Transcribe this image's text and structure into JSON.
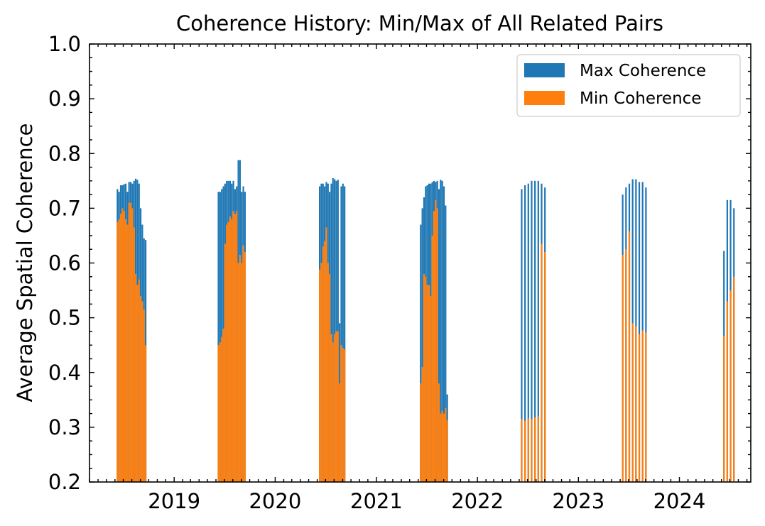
{
  "chart_data": {
    "type": "bar",
    "title": "Coherence History: Min/Max of All Related Pairs",
    "xlabel": "",
    "ylabel": "Average Spatial Coherence",
    "ylim": [
      0.2,
      1.0
    ],
    "xlim": [
      "2018-03-01",
      "2024-09-15"
    ],
    "grid": false,
    "legend_position": "top-right",
    "x_ticks": [
      "2019",
      "2020",
      "2021",
      "2022",
      "2023",
      "2024"
    ],
    "y_ticks": [
      "0.2",
      "0.3",
      "0.4",
      "0.5",
      "0.6",
      "0.7",
      "0.8",
      "0.9",
      "1.0"
    ],
    "colors": {
      "max": "#1f77b4",
      "min": "#ff7f0e"
    },
    "series": [
      {
        "name": "Max Coherence",
        "color": "#1f77b4",
        "points": [
          [
            "2018-06-10",
            0.735
          ],
          [
            "2018-06-16",
            0.73
          ],
          [
            "2018-06-22",
            0.742
          ],
          [
            "2018-06-28",
            0.742
          ],
          [
            "2018-07-04",
            0.744
          ],
          [
            "2018-07-10",
            0.745
          ],
          [
            "2018-07-16",
            0.73
          ],
          [
            "2018-07-22",
            0.748
          ],
          [
            "2018-07-28",
            0.748
          ],
          [
            "2018-08-03",
            0.745
          ],
          [
            "2018-08-09",
            0.75
          ],
          [
            "2018-08-15",
            0.754
          ],
          [
            "2018-08-21",
            0.752
          ],
          [
            "2018-08-27",
            0.745
          ],
          [
            "2018-09-02",
            0.7
          ],
          [
            "2018-09-08",
            0.67
          ],
          [
            "2018-09-14",
            0.645
          ],
          [
            "2018-09-20",
            0.642
          ],
          [
            "2019-06-10",
            0.73
          ],
          [
            "2019-06-16",
            0.73
          ],
          [
            "2019-06-22",
            0.735
          ],
          [
            "2019-06-28",
            0.74
          ],
          [
            "2019-07-04",
            0.745
          ],
          [
            "2019-07-10",
            0.75
          ],
          [
            "2019-07-16",
            0.75
          ],
          [
            "2019-07-22",
            0.75
          ],
          [
            "2019-07-28",
            0.745
          ],
          [
            "2019-08-03",
            0.75
          ],
          [
            "2019-08-09",
            0.735
          ],
          [
            "2019-08-15",
            0.74
          ],
          [
            "2019-08-21",
            0.788
          ],
          [
            "2019-08-27",
            0.788
          ],
          [
            "2019-09-02",
            0.73
          ],
          [
            "2019-09-08",
            0.74
          ],
          [
            "2019-09-14",
            0.73
          ],
          [
            "2020-06-10",
            0.74
          ],
          [
            "2020-06-16",
            0.745
          ],
          [
            "2020-06-22",
            0.745
          ],
          [
            "2020-06-28",
            0.74
          ],
          [
            "2020-07-04",
            0.748
          ],
          [
            "2020-07-10",
            0.745
          ],
          [
            "2020-07-16",
            0.73
          ],
          [
            "2020-07-22",
            0.745
          ],
          [
            "2020-07-28",
            0.755
          ],
          [
            "2020-08-03",
            0.753
          ],
          [
            "2020-08-09",
            0.75
          ],
          [
            "2020-08-15",
            0.752
          ],
          [
            "2020-08-21",
            0.49
          ],
          [
            "2020-08-27",
            0.74
          ],
          [
            "2020-09-02",
            0.745
          ],
          [
            "2020-09-08",
            0.74
          ],
          [
            "2021-06-10",
            0.67
          ],
          [
            "2021-06-16",
            0.7
          ],
          [
            "2021-06-22",
            0.72
          ],
          [
            "2021-06-28",
            0.74
          ],
          [
            "2021-07-04",
            0.742
          ],
          [
            "2021-07-10",
            0.745
          ],
          [
            "2021-07-16",
            0.745
          ],
          [
            "2021-07-22",
            0.748
          ],
          [
            "2021-07-28",
            0.75
          ],
          [
            "2021-08-03",
            0.748
          ],
          [
            "2021-08-09",
            0.75
          ],
          [
            "2021-08-15",
            0.735
          ],
          [
            "2021-08-21",
            0.752
          ],
          [
            "2021-08-27",
            0.75
          ],
          [
            "2021-09-02",
            0.74
          ],
          [
            "2021-09-08",
            0.705
          ],
          [
            "2021-09-14",
            0.36
          ],
          [
            "2022-06-10",
            0.735
          ],
          [
            "2022-06-22",
            0.742
          ],
          [
            "2022-07-04",
            0.745
          ],
          [
            "2022-07-16",
            0.75
          ],
          [
            "2022-07-28",
            0.75
          ],
          [
            "2022-08-09",
            0.75
          ],
          [
            "2022-08-21",
            0.745
          ],
          [
            "2022-09-02",
            0.738
          ],
          [
            "2023-06-10",
            0.725
          ],
          [
            "2023-06-22",
            0.738
          ],
          [
            "2023-07-04",
            0.745
          ],
          [
            "2023-07-16",
            0.753
          ],
          [
            "2023-07-28",
            0.753
          ],
          [
            "2023-08-09",
            0.748
          ],
          [
            "2023-08-21",
            0.748
          ],
          [
            "2023-09-02",
            0.738
          ],
          [
            "2024-06-10",
            0.622
          ],
          [
            "2024-06-22",
            0.715
          ],
          [
            "2024-07-04",
            0.715
          ],
          [
            "2024-07-16",
            0.7
          ]
        ]
      },
      {
        "name": "Min Coherence",
        "color": "#ff7f0e",
        "points": [
          [
            "2018-06-10",
            0.675
          ],
          [
            "2018-06-16",
            0.68
          ],
          [
            "2018-06-22",
            0.69
          ],
          [
            "2018-06-28",
            0.7
          ],
          [
            "2018-07-04",
            0.695
          ],
          [
            "2018-07-10",
            0.68
          ],
          [
            "2018-07-16",
            0.67
          ],
          [
            "2018-07-22",
            0.71
          ],
          [
            "2018-07-28",
            0.71
          ],
          [
            "2018-08-03",
            0.7
          ],
          [
            "2018-08-09",
            0.665
          ],
          [
            "2018-08-15",
            0.58
          ],
          [
            "2018-08-21",
            0.56
          ],
          [
            "2018-08-27",
            0.57
          ],
          [
            "2018-09-02",
            0.54
          ],
          [
            "2018-09-08",
            0.53
          ],
          [
            "2018-09-14",
            0.515
          ],
          [
            "2018-09-20",
            0.45
          ],
          [
            "2019-06-10",
            0.45
          ],
          [
            "2019-06-16",
            0.455
          ],
          [
            "2019-06-22",
            0.465
          ],
          [
            "2019-06-28",
            0.48
          ],
          [
            "2019-07-04",
            0.635
          ],
          [
            "2019-07-10",
            0.67
          ],
          [
            "2019-07-16",
            0.675
          ],
          [
            "2019-07-22",
            0.685
          ],
          [
            "2019-07-28",
            0.68
          ],
          [
            "2019-08-03",
            0.695
          ],
          [
            "2019-08-09",
            0.69
          ],
          [
            "2019-08-15",
            0.695
          ],
          [
            "2019-08-21",
            0.6
          ],
          [
            "2019-08-27",
            0.615
          ],
          [
            "2019-09-02",
            0.6
          ],
          [
            "2019-09-08",
            0.632
          ],
          [
            "2019-09-14",
            0.62
          ],
          [
            "2020-06-10",
            0.588
          ],
          [
            "2020-06-16",
            0.6
          ],
          [
            "2020-06-22",
            0.63
          ],
          [
            "2020-06-28",
            0.64
          ],
          [
            "2020-07-04",
            0.665
          ],
          [
            "2020-07-10",
            0.6
          ],
          [
            "2020-07-16",
            0.58
          ],
          [
            "2020-07-22",
            0.47
          ],
          [
            "2020-07-28",
            0.455
          ],
          [
            "2020-08-03",
            0.47
          ],
          [
            "2020-08-09",
            0.476
          ],
          [
            "2020-08-15",
            0.475
          ],
          [
            "2020-08-21",
            0.38
          ],
          [
            "2020-08-27",
            0.45
          ],
          [
            "2020-09-02",
            0.445
          ],
          [
            "2020-09-08",
            0.442
          ],
          [
            "2021-06-10",
            0.38
          ],
          [
            "2021-06-16",
            0.41
          ],
          [
            "2021-06-22",
            0.58
          ],
          [
            "2021-06-28",
            0.575
          ],
          [
            "2021-07-04",
            0.56
          ],
          [
            "2021-07-10",
            0.56
          ],
          [
            "2021-07-16",
            0.54
          ],
          [
            "2021-07-22",
            0.65
          ],
          [
            "2021-07-28",
            0.695
          ],
          [
            "2021-08-03",
            0.715
          ],
          [
            "2021-08-09",
            0.7
          ],
          [
            "2021-08-15",
            0.38
          ],
          [
            "2021-08-21",
            0.325
          ],
          [
            "2021-08-27",
            0.33
          ],
          [
            "2021-09-02",
            0.325
          ],
          [
            "2021-09-08",
            0.335
          ],
          [
            "2021-09-14",
            0.313
          ],
          [
            "2022-06-10",
            0.315
          ],
          [
            "2022-06-22",
            0.312
          ],
          [
            "2022-07-04",
            0.316
          ],
          [
            "2022-07-16",
            0.315
          ],
          [
            "2022-07-28",
            0.318
          ],
          [
            "2022-08-09",
            0.32
          ],
          [
            "2022-08-21",
            0.635
          ],
          [
            "2022-09-02",
            0.62
          ],
          [
            "2023-06-10",
            0.615
          ],
          [
            "2023-06-22",
            0.625
          ],
          [
            "2023-07-04",
            0.658
          ],
          [
            "2023-07-16",
            0.49
          ],
          [
            "2023-07-28",
            0.485
          ],
          [
            "2023-08-09",
            0.47
          ],
          [
            "2023-08-21",
            0.477
          ],
          [
            "2023-09-02",
            0.473
          ],
          [
            "2024-06-10",
            0.467
          ],
          [
            "2024-06-22",
            0.53
          ],
          [
            "2024-07-04",
            0.55
          ],
          [
            "2024-07-16",
            0.575
          ]
        ]
      }
    ]
  }
}
